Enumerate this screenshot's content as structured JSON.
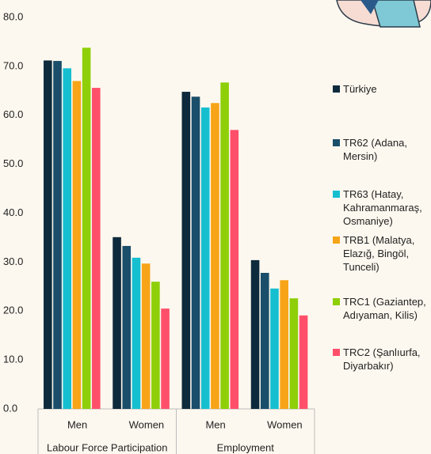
{
  "chart_data": {
    "type": "bar",
    "categories": [
      "Men",
      "Women",
      "Men",
      "Women"
    ],
    "group_labels": [
      "Labour Force Participation",
      "Employment"
    ],
    "series": [
      {
        "name": "Türkiye",
        "color": "#0e2a3d",
        "values": [
          71.2,
          35.1,
          64.8,
          30.4
        ]
      },
      {
        "name": "TR62 (Adana, Mersin)",
        "color": "#1a4e6a",
        "values": [
          71.1,
          33.3,
          63.8,
          27.8
        ]
      },
      {
        "name": "TR63 (Hatay, Kahramanmaraş, Osmaniye)",
        "color": "#16bfd0",
        "values": [
          69.6,
          30.9,
          61.6,
          24.6
        ]
      },
      {
        "name": "TRB1 (Malatya, Elazığ, Bingöl, Tunceli)",
        "color": "#f7a418",
        "values": [
          67.0,
          29.7,
          62.5,
          26.3
        ]
      },
      {
        "name": "TRC1 (Gaziantep, Adıyaman, Kilis)",
        "color": "#8ecf0a",
        "values": [
          73.8,
          26.0,
          66.7,
          22.6
        ]
      },
      {
        "name": "TRC2 (Şanlıurfa, Diyarbakır)",
        "color": "#ff4f6a",
        "values": [
          65.6,
          20.5,
          57.0,
          19.1
        ]
      }
    ],
    "ylim": [
      0,
      80
    ],
    "yticks": [
      {
        "value": 0,
        "label": "0.0"
      },
      {
        "value": 10,
        "label": "10.0"
      },
      {
        "value": 20,
        "label": "20.0"
      },
      {
        "value": 30,
        "label": "30.0"
      },
      {
        "value": 40,
        "label": "40.0"
      },
      {
        "value": 50,
        "label": "50.0"
      },
      {
        "value": 60,
        "label": "60.0"
      },
      {
        "value": 70,
        "label": "70.0"
      },
      {
        "value": 80,
        "label": "80.0"
      }
    ],
    "legend": "right"
  }
}
